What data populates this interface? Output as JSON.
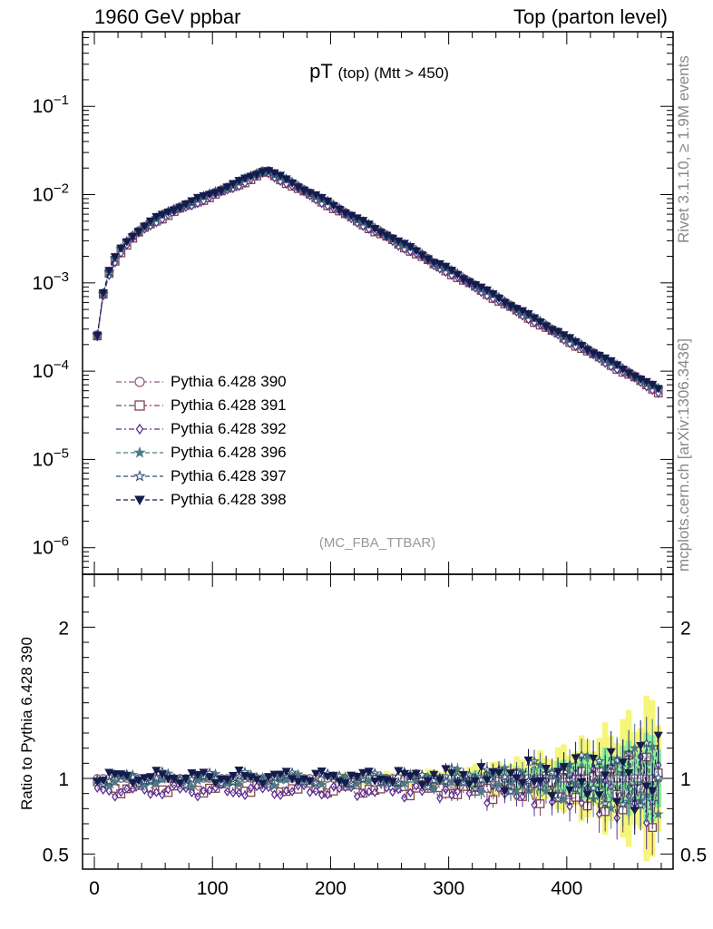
{
  "header": {
    "left": "1960 GeV ppbar",
    "right": "Top (parton level)"
  },
  "side_labels": {
    "rivet": "Rivet 3.1.10, ≥ 1.9M events",
    "mcplots": "mcplots.cern.ch [arXiv:1306.3436]"
  },
  "plot_title": {
    "main": "pT",
    "sub": "(top) (Mtt > 450)"
  },
  "watermark": "(MC_FBA_TTBAR)",
  "ratio_ylabel": "Ratio to Pythia 6.428 390",
  "legend": [
    {
      "label": "Pythia 6.428 390",
      "color": "#8e5e86",
      "marker": "circle-open",
      "dash": "dashdot"
    },
    {
      "label": "Pythia 6.428 391",
      "color": "#80454e",
      "marker": "square-open",
      "dash": "dashdot"
    },
    {
      "label": "Pythia 6.428 392",
      "color": "#5d2f95",
      "marker": "diamond-open",
      "dash": "dashdot"
    },
    {
      "label": "Pythia 6.428 396",
      "color": "#4e7a85",
      "marker": "star-filled",
      "dash": "dashed"
    },
    {
      "label": "Pythia 6.428 397",
      "color": "#33516f",
      "marker": "star-open",
      "dash": "dashed"
    },
    {
      "label": "Pythia 6.428 398",
      "color": "#141c4e",
      "marker": "triangle-down-filled",
      "dash": "dashed"
    }
  ],
  "chart_data": {
    "type": "line",
    "x_ticks": [
      "0",
      "100",
      "200",
      "300",
      "400"
    ],
    "xlim": [
      -10,
      490
    ],
    "main_ylim": [
      5e-07,
      0.7
    ],
    "main_y_scale": "log",
    "main_y_ticks": [
      {
        "value": 0.1,
        "label": "10^-1"
      },
      {
        "value": 0.01,
        "label": "10^-2"
      },
      {
        "value": 0.001,
        "label": "10^-3"
      },
      {
        "value": 0.0001,
        "label": "10^-4"
      },
      {
        "value": 1e-05,
        "label": "10^-5"
      },
      {
        "value": 1e-06,
        "label": "10^-6"
      }
    ],
    "ratio_ylim": [
      0.4,
      2.35
    ],
    "ratio_y_ticks": [
      {
        "value": 0.5,
        "label": "0.5"
      },
      {
        "value": 1,
        "label": "1"
      },
      {
        "value": 2,
        "label": "2"
      }
    ],
    "x": [
      2.5,
      7.5,
      12.5,
      17.5,
      22.5,
      27.5,
      32.5,
      37.5,
      42.5,
      47.5,
      52.5,
      57.5,
      62.5,
      67.5,
      72.5,
      77.5,
      82.5,
      87.5,
      92.5,
      97.5,
      102.5,
      107.5,
      112.5,
      117.5,
      122.5,
      127.5,
      132.5,
      137.5,
      142.5,
      147.5,
      152.5,
      157.5,
      162.5,
      167.5,
      172.5,
      177.5,
      182.5,
      187.5,
      192.5,
      197.5,
      202.5,
      207.5,
      212.5,
      217.5,
      222.5,
      227.5,
      232.5,
      237.5,
      242.5,
      247.5,
      252.5,
      257.5,
      262.5,
      267.5,
      272.5,
      277.5,
      282.5,
      287.5,
      292.5,
      297.5,
      302.5,
      307.5,
      312.5,
      317.5,
      322.5,
      327.5,
      332.5,
      337.5,
      342.5,
      347.5,
      352.5,
      357.5,
      362.5,
      367.5,
      372.5,
      377.5,
      382.5,
      387.5,
      392.5,
      397.5,
      402.5,
      407.5,
      412.5,
      417.5,
      422.5,
      427.5,
      432.5,
      437.5,
      442.5,
      447.5,
      452.5,
      457.5,
      462.5,
      467.5,
      472.5,
      477.5
    ],
    "series": [
      {
        "name": "Pythia 6.428 390",
        "values": [
          0.00026,
          0.00077,
          0.00135,
          0.0019,
          0.0024,
          0.0029,
          0.0034,
          0.0039,
          0.0044,
          0.0049,
          0.0054,
          0.0058,
          0.0063,
          0.0068,
          0.0073,
          0.0078,
          0.0083,
          0.0089,
          0.0094,
          0.01,
          0.0107,
          0.0114,
          0.0122,
          0.013,
          0.0139,
          0.0149,
          0.016,
          0.0172,
          0.0185,
          0.0187,
          0.0172,
          0.0159,
          0.0146,
          0.0135,
          0.0124,
          0.0114,
          0.0105,
          0.0097,
          0.0089,
          0.0082,
          0.0075,
          0.0069,
          0.0063,
          0.0058,
          0.0053,
          0.0049,
          0.0045,
          0.0041,
          0.0038,
          0.0035,
          0.0032,
          0.0029,
          0.0027,
          0.0025,
          0.0023,
          0.0021,
          0.0019,
          0.0017,
          0.0016,
          0.00148,
          0.00135,
          0.00124,
          0.00113,
          0.00104,
          0.00095,
          0.00087,
          0.0008,
          0.00073,
          0.00067,
          0.00061,
          0.00056,
          0.00051,
          0.00047,
          0.00043,
          0.00039,
          0.00036,
          0.00033,
          0.0003,
          0.00028,
          0.00025,
          0.00023,
          0.00021,
          0.000195,
          0.000178,
          0.000163,
          0.00015,
          0.000137,
          0.000126,
          0.000115,
          0.000105,
          9.7e-05,
          8.9e-05,
          8.1e-05,
          7.4e-05,
          6.8e-05,
          6.2e-05
        ]
      },
      {
        "name": "Pythia 6.428 391",
        "ratio": 0.94
      },
      {
        "name": "Pythia 6.428 392",
        "ratio": 0.92
      },
      {
        "name": "Pythia 6.428 396",
        "ratio": 0.99
      },
      {
        "name": "Pythia 6.428 397",
        "ratio": 1.0
      },
      {
        "name": "Pythia 6.428 398",
        "ratio": 1.01
      }
    ],
    "xlabel": "",
    "ylabel_ratio": "Ratio to Pythia 6.428 390"
  }
}
